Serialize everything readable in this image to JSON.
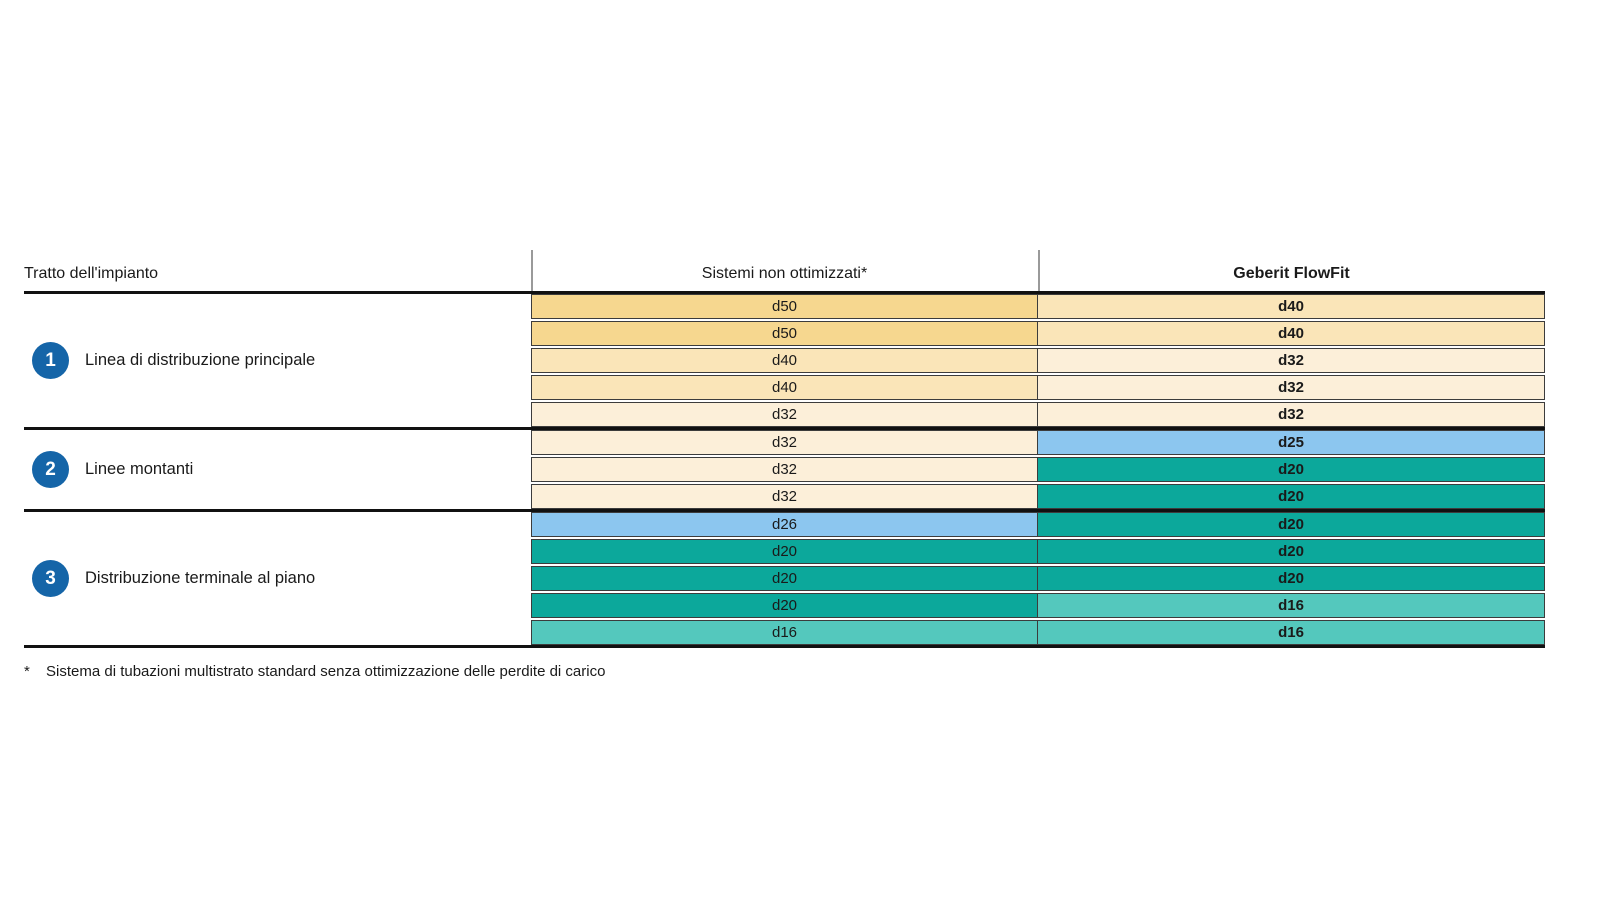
{
  "table": {
    "headers": {
      "col1": "Tratto dell'impianto",
      "col2": "Sistemi non ottimizzati*",
      "col3": "Geberit FlowFit"
    },
    "sections": [
      {
        "number": "1",
        "label": "Linea di distribuzione principale",
        "rows": [
          {
            "left": "d50",
            "right": "d40"
          },
          {
            "left": "d50",
            "right": "d40"
          },
          {
            "left": "d40",
            "right": "d32"
          },
          {
            "left": "d40",
            "right": "d32"
          },
          {
            "left": "d32",
            "right": "d32"
          }
        ]
      },
      {
        "number": "2",
        "label": "Linee montanti",
        "rows": [
          {
            "left": "d32",
            "right": "d25"
          },
          {
            "left": "d32",
            "right": "d20"
          },
          {
            "left": "d32",
            "right": "d20"
          }
        ]
      },
      {
        "number": "3",
        "label": "Distribuzione terminale al piano",
        "rows": [
          {
            "left": "d26",
            "right": "d20"
          },
          {
            "left": "d20",
            "right": "d20"
          },
          {
            "left": "d20",
            "right": "d20"
          },
          {
            "left": "d20",
            "right": "d16"
          },
          {
            "left": "d16",
            "right": "d16"
          }
        ]
      }
    ],
    "footnote": {
      "marker": "*",
      "text": "Sistema di tubazioni multistrato standard senza ottimizzazione delle perdite di carico"
    }
  },
  "colors": {
    "d50": "#F6D78F",
    "d40": "#FAE5B8",
    "d32": "#FCEFD9",
    "d26": "#8CC6EF",
    "d25": "#8CC6EF",
    "d20": "#0CA89B",
    "d16": "#54C8BD",
    "section_badge": "#1565A8"
  },
  "chart_data": {
    "type": "table",
    "title": "",
    "columns": [
      "Tratto dell'impianto",
      "Sistemi non ottimizzati*",
      "Geberit FlowFit"
    ],
    "row_groups": [
      {
        "group": "1 - Linea di distribuzione principale",
        "rows": [
          [
            "d50",
            "d40"
          ],
          [
            "d50",
            "d40"
          ],
          [
            "d40",
            "d32"
          ],
          [
            "d40",
            "d32"
          ],
          [
            "d32",
            "d32"
          ]
        ]
      },
      {
        "group": "2 - Linee montanti",
        "rows": [
          [
            "d32",
            "d25"
          ],
          [
            "d32",
            "d20"
          ],
          [
            "d32",
            "d20"
          ]
        ]
      },
      {
        "group": "3 - Distribuzione terminale al piano",
        "rows": [
          [
            "d26",
            "d20"
          ],
          [
            "d20",
            "d20"
          ],
          [
            "d20",
            "d20"
          ],
          [
            "d20",
            "d16"
          ],
          [
            "d16",
            "d16"
          ]
        ]
      }
    ],
    "footnote": "* Sistema di tubazioni multistrato standard senza ottimizzazione delle perdite di carico",
    "legend_semantics": "cell background encodes pipe diameter: d50/d40/d32 warm tan shades, d26/d25 light blue, d20 teal, d16 light teal"
  }
}
